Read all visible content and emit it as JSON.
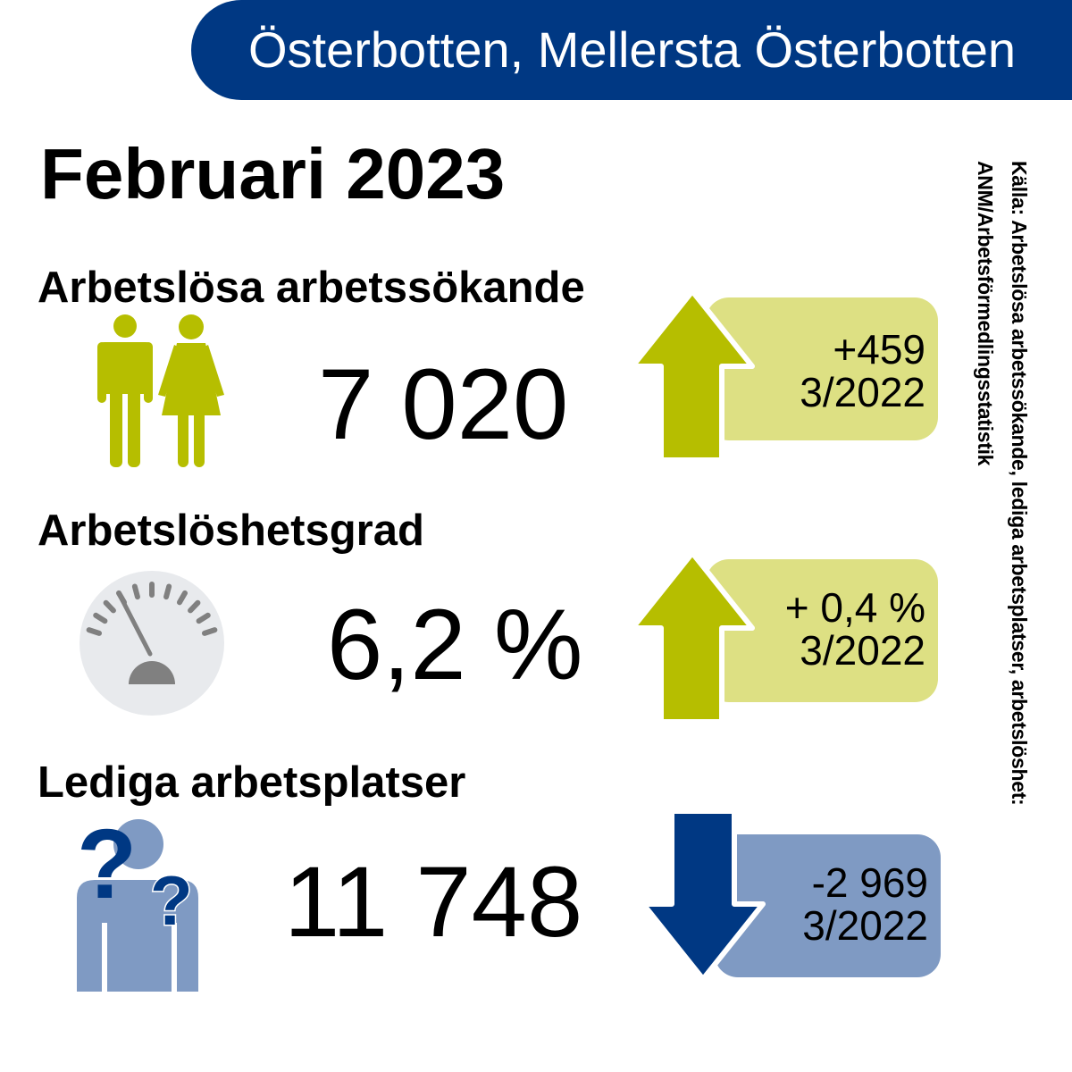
{
  "header": {
    "region": "Österbotten, Mellersta Österbotten"
  },
  "period": "Februari 2023",
  "colors": {
    "navy": "#003883",
    "lime": "#b6be00",
    "lime_light": "#dde083",
    "blue_light": "#7f9ac3"
  },
  "sections": [
    {
      "heading": "Arbetslösa arbetssökande",
      "value": "7 020",
      "change": "+459",
      "compare": "3/2022",
      "trend": "up",
      "icon": "man-woman-icon"
    },
    {
      "heading": "Arbetslöshetsgrad",
      "value": "6,2 %",
      "change": "+ 0,4 %",
      "compare": "3/2022",
      "trend": "up",
      "icon": "gauge-icon"
    },
    {
      "heading": "Lediga arbetsplatser",
      "value": "11 748",
      "change": "-2 969",
      "compare": "3/2022",
      "trend": "down",
      "icon": "person-question-icon"
    }
  ],
  "source": {
    "line1": "Källa: Arbetslösa arbetssökande, lediga arbetsplatser, arbetslöshet:",
    "line2": "ANM/Arbetsförmedlingsstatistik"
  }
}
